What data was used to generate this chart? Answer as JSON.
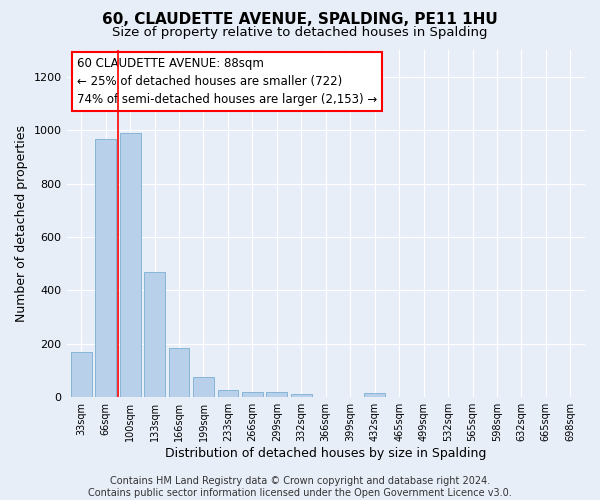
{
  "title": "60, CLAUDETTE AVENUE, SPALDING, PE11 1HU",
  "subtitle": "Size of property relative to detached houses in Spalding",
  "xlabel": "Distribution of detached houses by size in Spalding",
  "ylabel": "Number of detached properties",
  "bar_color": "#b8d0ea",
  "bar_edge_color": "#7aafd4",
  "background_color": "#e8eef8",
  "grid_color": "#ffffff",
  "fig_background": "#e8eef8",
  "categories": [
    "33sqm",
    "66sqm",
    "100sqm",
    "133sqm",
    "166sqm",
    "199sqm",
    "233sqm",
    "266sqm",
    "299sqm",
    "332sqm",
    "366sqm",
    "399sqm",
    "432sqm",
    "465sqm",
    "499sqm",
    "532sqm",
    "565sqm",
    "598sqm",
    "632sqm",
    "665sqm",
    "698sqm"
  ],
  "values": [
    170,
    965,
    990,
    468,
    185,
    75,
    28,
    20,
    20,
    12,
    0,
    0,
    15,
    0,
    0,
    0,
    0,
    0,
    0,
    0,
    0
  ],
  "ylim": [
    0,
    1300
  ],
  "yticks": [
    0,
    200,
    400,
    600,
    800,
    1000,
    1200
  ],
  "vline_x_idx": 1.5,
  "annotation_text_line1": "60 CLAUDETTE AVENUE: 88sqm",
  "annotation_text_line2": "← 25% of detached houses are smaller (722)",
  "annotation_text_line3": "74% of semi-detached houses are larger (2,153) →",
  "footer_text": "Contains HM Land Registry data © Crown copyright and database right 2024.\nContains public sector information licensed under the Open Government Licence v3.0.",
  "title_fontsize": 11,
  "subtitle_fontsize": 9.5,
  "xlabel_fontsize": 9,
  "ylabel_fontsize": 9,
  "annotation_fontsize": 8.5,
  "footer_fontsize": 7
}
